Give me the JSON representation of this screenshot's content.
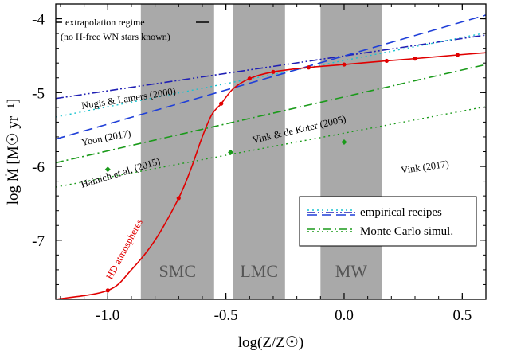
{
  "chart_data": {
    "type": "line",
    "xlabel": "log(Z/Z☉)",
    "ylabel": "log Ṁ [M☉ yr⁻¹]",
    "xlim": [
      -1.22,
      0.6
    ],
    "ylim": [
      -7.8,
      -3.8
    ],
    "x_ticks": [
      -1.0,
      -0.5,
      0.0,
      0.5
    ],
    "x_tick_labels": [
      "-1.0",
      "-0.5",
      "0.0",
      "0.5"
    ],
    "y_ticks": [
      -4,
      -5,
      -6,
      -7
    ],
    "y_tick_labels": [
      "-4",
      "-5",
      "-6",
      "-7"
    ],
    "grid": false,
    "bands": [
      {
        "label": "SMC",
        "x": [
          -0.86,
          -0.55
        ],
        "color": "#a9a9a9"
      },
      {
        "label": "LMC",
        "x": [
          -0.47,
          -0.25
        ],
        "color": "#a9a9a9"
      },
      {
        "label": "MW",
        "x": [
          -0.1,
          0.16
        ],
        "color": "#a9a9a9"
      }
    ],
    "annotations": {
      "extrapolation_line1": "extrapolation regime",
      "extrapolation_line2": "(no H-free WN stars known)"
    },
    "series": [
      {
        "name": "Nugis & Lamers (2000)",
        "style": "dashdotdot",
        "color": "#1f1fb4",
        "x": [
          -1.22,
          0.6
        ],
        "y": [
          -5.08,
          -4.22
        ]
      },
      {
        "name": "Yoon (2017)",
        "style": "dotted",
        "color": "#17c3cf",
        "x": [
          -1.22,
          0.6
        ],
        "y": [
          -5.33,
          -4.19
        ]
      },
      {
        "name": "Hainich et al. (2015)",
        "style": "dashed",
        "color": "#1f3fd8",
        "x": [
          -1.22,
          0.6
        ],
        "y": [
          -5.63,
          -3.95
        ]
      },
      {
        "name": "Vink & de Koter (2005)",
        "style": "dashdot",
        "color": "#1a9a1a",
        "x": [
          -1.22,
          0.6
        ],
        "y": [
          -5.95,
          -4.62
        ]
      },
      {
        "name": "Vink (2017)",
        "style": "dotted",
        "color": "#1a9a1a",
        "x": [
          -1.22,
          0.6
        ],
        "y": [
          -6.28,
          -5.19
        ]
      },
      {
        "name": "HD atmospheres",
        "style": "solid",
        "color": "#e00000",
        "x": [
          -1.22,
          -1.0,
          -0.9,
          -0.8,
          -0.7,
          -0.65,
          -0.6,
          -0.56,
          -0.52,
          -0.47,
          -0.4,
          -0.3,
          -0.15,
          0.0,
          0.18,
          0.3,
          0.48,
          0.6
        ],
        "y": [
          -7.8,
          -7.68,
          -7.4,
          -7.0,
          -6.43,
          -6.05,
          -5.6,
          -5.3,
          -5.15,
          -4.95,
          -4.81,
          -4.72,
          -4.66,
          -4.62,
          -4.57,
          -4.54,
          -4.49,
          -4.46
        ],
        "markers_x": [
          -1.0,
          -0.7,
          -0.52,
          -0.4,
          -0.3,
          -0.15,
          0.0,
          0.18,
          0.3,
          0.48
        ],
        "markers_y": [
          -7.68,
          -6.43,
          -5.15,
          -4.81,
          -4.72,
          -4.66,
          -4.62,
          -4.57,
          -4.54,
          -4.49
        ]
      },
      {
        "name": "Monte Carlo points",
        "style": "markers",
        "color": "#1a9a1a",
        "x": [
          -1.0,
          -0.48,
          0.0
        ],
        "y": [
          -6.04,
          -5.81,
          -5.67
        ]
      }
    ],
    "legend": [
      {
        "label": "empirical recipes",
        "colors": [
          "#17c3cf",
          "#1f1fb4",
          "#1f3fd8"
        ],
        "styles": [
          "dotted",
          "dashdotdot",
          "dashed"
        ]
      },
      {
        "label": "Monte Carlo simul.",
        "colors": [
          "#1a9a1a",
          "#1a9a1a"
        ],
        "styles": [
          "dashdot",
          "dotted"
        ]
      }
    ],
    "legend_position": "lower-right"
  }
}
